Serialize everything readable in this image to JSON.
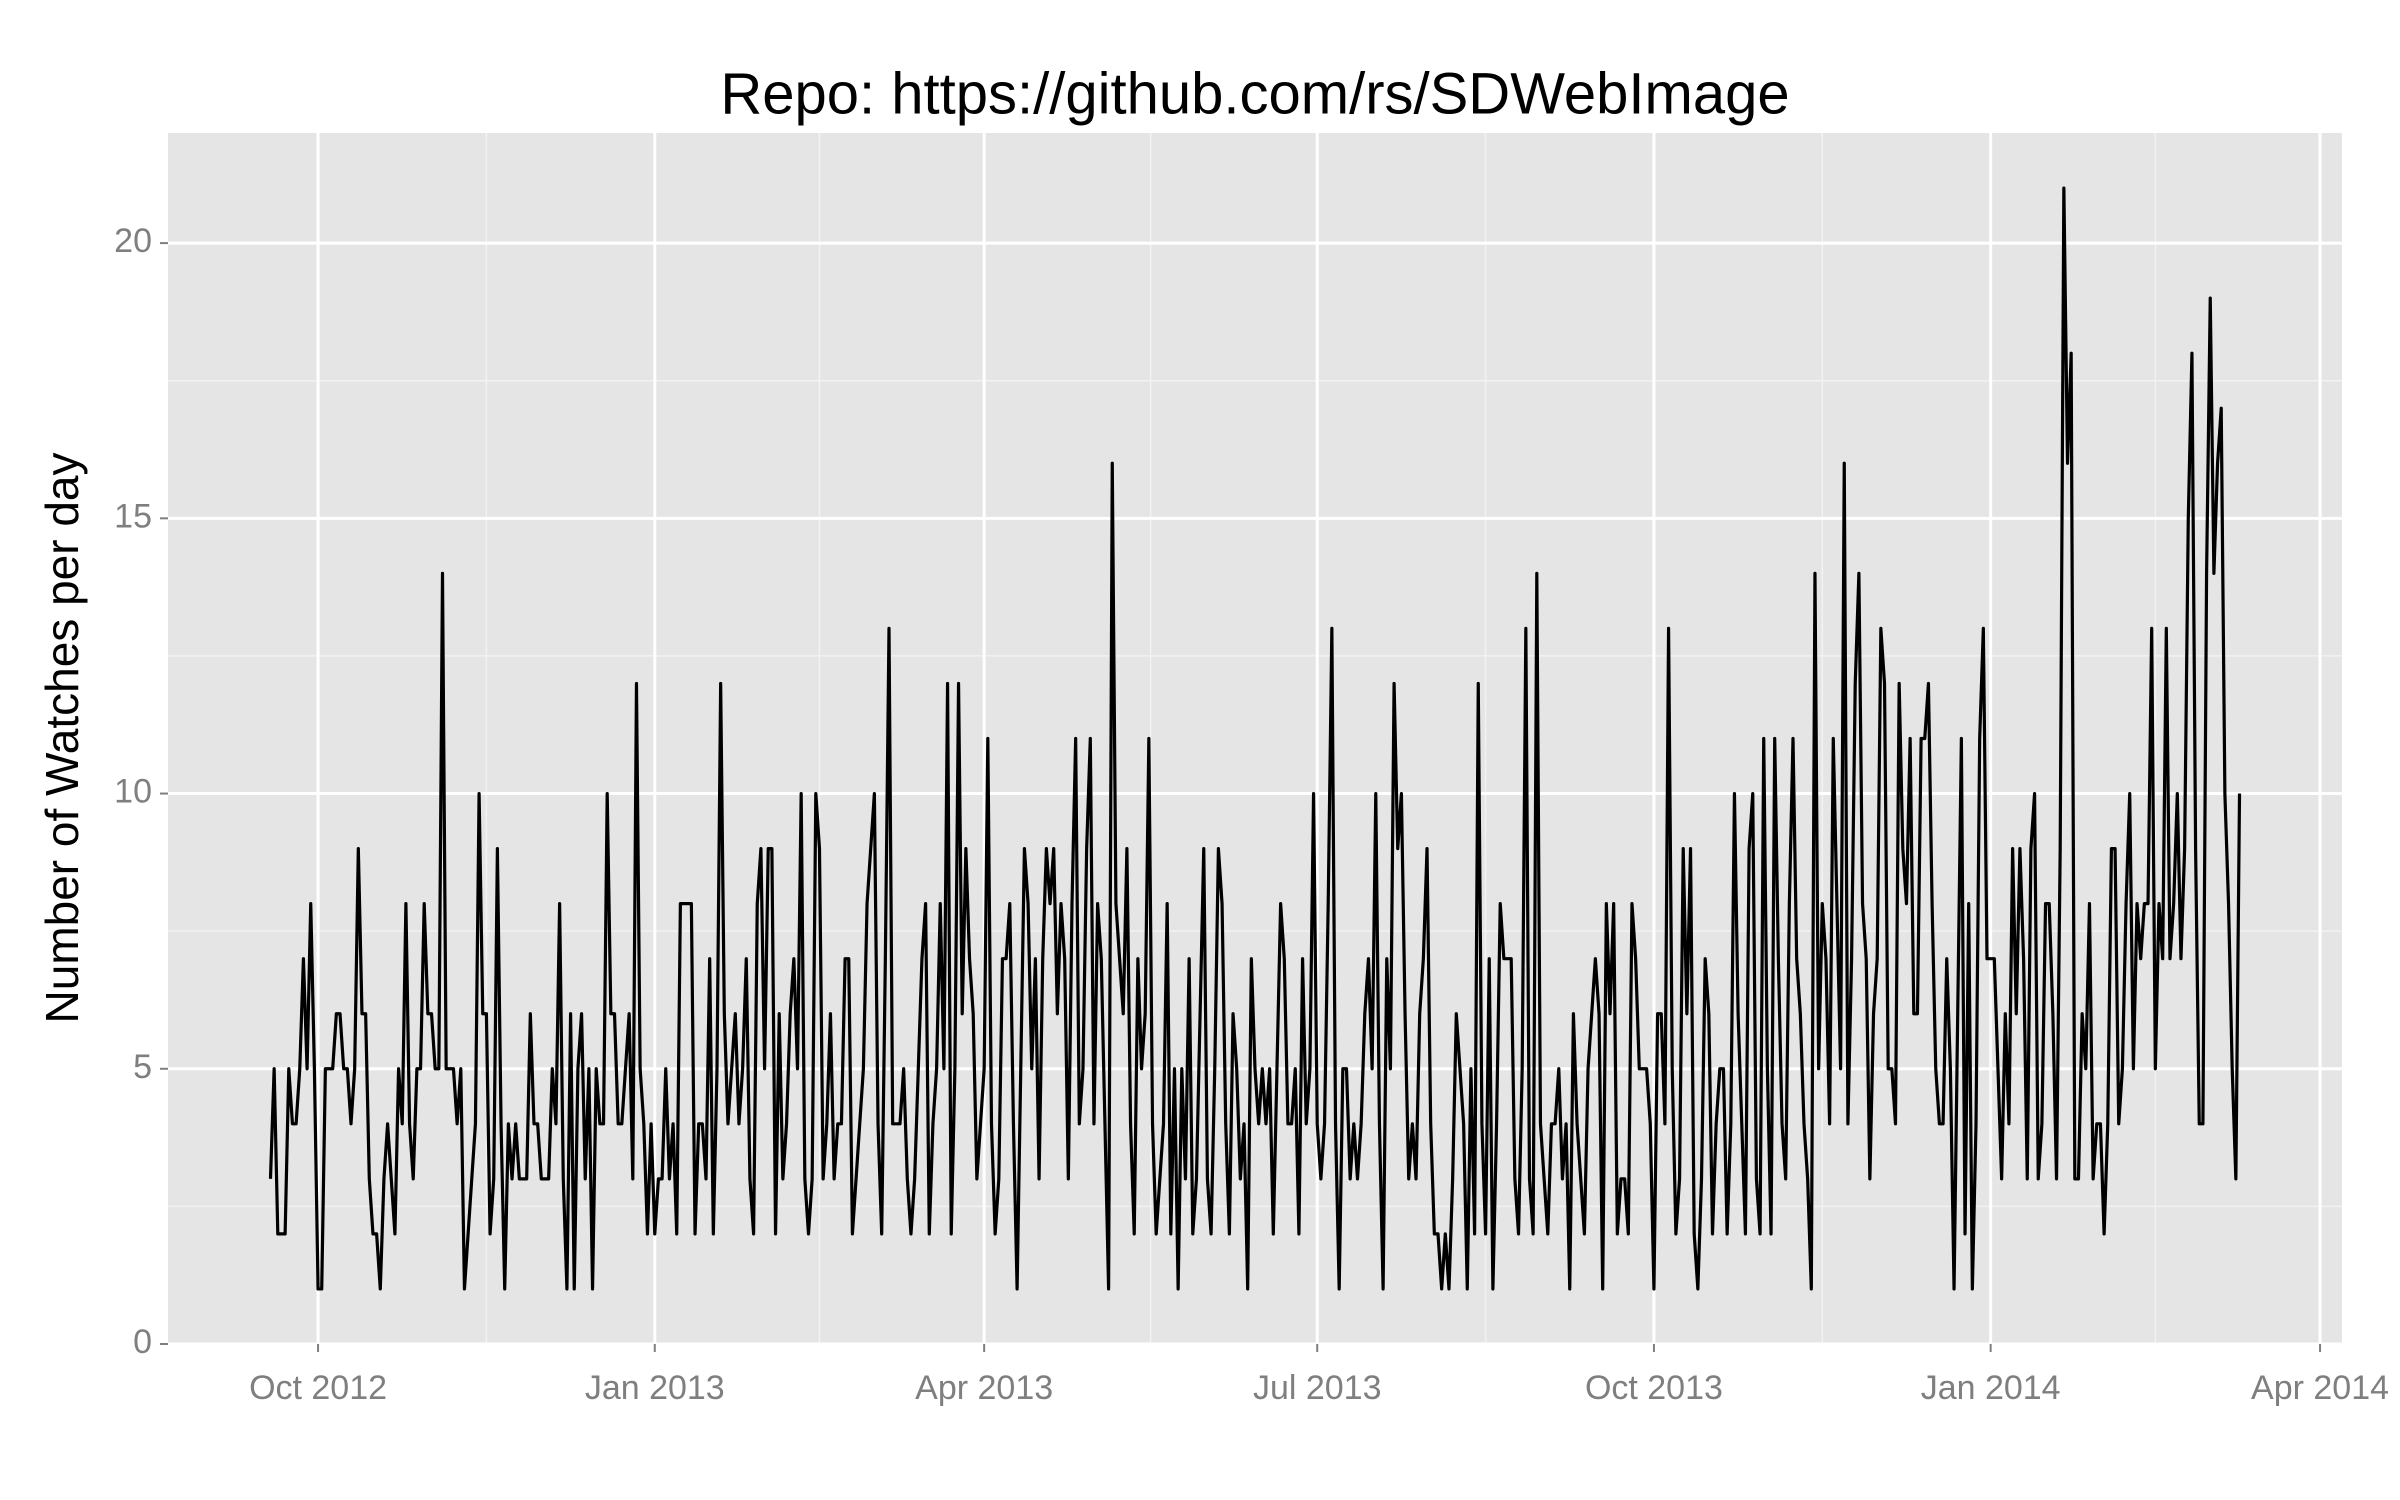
{
  "chart_data": {
    "type": "line",
    "title": "Repo: https://github.com/rs/SDWebImage",
    "ylabel": "Number of Watches per day",
    "color": "#000000",
    "grid": true,
    "xlim": [
      -41,
      553
    ],
    "ylim": [
      0,
      22
    ],
    "xticks": [
      {
        "value": 0,
        "label": "Oct 2012"
      },
      {
        "value": 92,
        "label": "Jan 2013"
      },
      {
        "value": 182,
        "label": "Apr 2013"
      },
      {
        "value": 273,
        "label": "Jul 2013"
      },
      {
        "value": 365,
        "label": "Oct 2013"
      },
      {
        "value": 457,
        "label": "Jan 2014"
      },
      {
        "value": 547,
        "label": "Apr 2014"
      }
    ],
    "yticks": [
      0,
      5,
      10,
      15,
      20
    ],
    "x": [
      -13,
      -12,
      -11,
      -10,
      -9,
      -8,
      -7,
      -6,
      -5,
      -4,
      -3,
      -2,
      -1,
      0,
      1,
      2,
      3,
      4,
      5,
      6,
      7,
      8,
      9,
      10,
      11,
      12,
      13,
      14,
      15,
      16,
      17,
      18,
      19,
      20,
      21,
      22,
      23,
      24,
      25,
      26,
      27,
      28,
      29,
      30,
      31,
      32,
      33,
      34,
      35,
      36,
      37,
      38,
      39,
      40,
      41,
      42,
      43,
      44,
      45,
      46,
      47,
      48,
      49,
      50,
      51,
      52,
      53,
      54,
      55,
      56,
      57,
      58,
      59,
      60,
      61,
      62,
      63,
      64,
      65,
      66,
      67,
      68,
      69,
      70,
      71,
      72,
      73,
      74,
      75,
      76,
      77,
      78,
      79,
      80,
      81,
      82,
      83,
      84,
      85,
      86,
      87,
      88,
      89,
      90,
      91,
      92,
      93,
      94,
      95,
      96,
      97,
      98,
      99,
      100,
      101,
      102,
      103,
      104,
      105,
      106,
      107,
      108,
      109,
      110,
      111,
      112,
      113,
      114,
      115,
      116,
      117,
      118,
      119,
      120,
      121,
      122,
      123,
      124,
      125,
      126,
      127,
      128,
      129,
      130,
      131,
      132,
      133,
      134,
      135,
      136,
      137,
      138,
      139,
      140,
      141,
      142,
      143,
      144,
      145,
      146,
      147,
      148,
      149,
      150,
      151,
      152,
      153,
      154,
      155,
      156,
      157,
      158,
      159,
      160,
      161,
      162,
      163,
      164,
      165,
      166,
      167,
      168,
      169,
      170,
      171,
      172,
      173,
      174,
      175,
      176,
      177,
      178,
      179,
      180,
      181,
      182,
      183,
      184,
      185,
      186,
      187,
      188,
      189,
      190,
      191,
      192,
      193,
      194,
      195,
      196,
      197,
      198,
      199,
      200,
      201,
      202,
      203,
      204,
      205,
      206,
      207,
      208,
      209,
      210,
      211,
      212,
      213,
      214,
      215,
      216,
      217,
      218,
      219,
      220,
      221,
      222,
      223,
      224,
      225,
      226,
      227,
      228,
      229,
      230,
      231,
      232,
      233,
      234,
      235,
      236,
      237,
      238,
      239,
      240,
      241,
      242,
      243,
      244,
      245,
      246,
      247,
      248,
      249,
      250,
      251,
      252,
      253,
      254,
      255,
      256,
      257,
      258,
      259,
      260,
      261,
      262,
      263,
      264,
      265,
      266,
      267,
      268,
      269,
      270,
      271,
      272,
      273,
      274,
      275,
      276,
      277,
      278,
      279,
      280,
      281,
      282,
      283,
      284,
      285,
      286,
      287,
      288,
      289,
      290,
      291,
      292,
      293,
      294,
      295,
      296,
      297,
      298,
      299,
      300,
      301,
      302,
      303,
      304,
      305,
      306,
      307,
      308,
      309,
      310,
      311,
      312,
      313,
      314,
      315,
      316,
      317,
      318,
      319,
      320,
      321,
      322,
      323,
      324,
      325,
      326,
      327,
      328,
      329,
      330,
      331,
      332,
      333,
      334,
      335,
      336,
      337,
      338,
      339,
      340,
      341,
      342,
      343,
      344,
      345,
      346,
      347,
      348,
      349,
      350,
      351,
      352,
      353,
      354,
      355,
      356,
      357,
      358,
      359,
      360,
      361,
      362,
      363,
      364,
      365,
      366,
      367,
      368,
      369,
      370,
      371,
      372,
      373,
      374,
      375,
      376,
      377,
      378,
      379,
      380,
      381,
      382,
      383,
      384,
      385,
      386,
      387,
      388,
      389,
      390,
      391,
      392,
      393,
      394,
      395,
      396,
      397,
      398,
      399,
      400,
      401,
      402,
      403,
      404,
      405,
      406,
      407,
      408,
      409,
      410,
      411,
      412,
      413,
      414,
      415,
      416,
      417,
      418,
      419,
      420,
      421,
      422,
      423,
      424,
      425,
      426,
      427,
      428,
      429,
      430,
      431,
      432,
      433,
      434,
      435,
      436,
      437,
      438,
      439,
      440,
      441,
      442,
      443,
      444,
      445,
      446,
      447,
      448,
      449,
      450,
      451,
      452,
      453,
      454,
      455,
      456,
      457,
      458,
      459,
      460,
      461,
      462,
      463,
      464,
      465,
      466,
      467,
      468,
      469,
      470,
      471,
      472,
      473,
      474,
      475,
      476,
      477,
      478,
      479,
      480,
      481,
      482,
      483,
      484,
      485,
      486,
      487,
      488,
      489,
      490,
      491,
      492,
      493,
      494,
      495,
      496,
      497,
      498,
      499,
      500,
      501,
      502,
      503,
      504,
      505,
      506,
      507,
      508,
      509,
      510,
      511,
      512,
      513,
      514,
      515,
      516,
      517,
      518,
      519,
      520,
      521,
      522,
      523,
      524,
      525
    ],
    "values": [
      3,
      5,
      2,
      2,
      2,
      5,
      4,
      4,
      5,
      7,
      5,
      8,
      5,
      1,
      1,
      5,
      5,
      5,
      6,
      6,
      5,
      5,
      4,
      5,
      9,
      6,
      6,
      3,
      2,
      2,
      1,
      3,
      4,
      3,
      2,
      5,
      4,
      8,
      4,
      3,
      5,
      5,
      8,
      6,
      6,
      5,
      5,
      14,
      5,
      5,
      5,
      4,
      5,
      1,
      2,
      3,
      4,
      10,
      6,
      6,
      2,
      3,
      9,
      4,
      1,
      4,
      3,
      4,
      3,
      3,
      3,
      6,
      4,
      4,
      3,
      3,
      3,
      5,
      4,
      8,
      3,
      1,
      6,
      1,
      5,
      6,
      3,
      5,
      1,
      5,
      4,
      4,
      10,
      6,
      6,
      4,
      4,
      5,
      6,
      3,
      12,
      5,
      4,
      2,
      4,
      2,
      3,
      3,
      5,
      3,
      4,
      2,
      8,
      8,
      8,
      8,
      2,
      4,
      4,
      3,
      7,
      2,
      5,
      12,
      6,
      4,
      5,
      6,
      4,
      5,
      7,
      3,
      2,
      8,
      9,
      5,
      9,
      9,
      2,
      6,
      3,
      4,
      6,
      7,
      5,
      10,
      3,
      2,
      3,
      10,
      9,
      3,
      4,
      6,
      3,
      4,
      4,
      7,
      7,
      2,
      3,
      4,
      5,
      8,
      9,
      10,
      4,
      2,
      7,
      13,
      4,
      4,
      4,
      5,
      3,
      2,
      3,
      5,
      7,
      8,
      2,
      4,
      5,
      8,
      5,
      12,
      2,
      5,
      12,
      6,
      9,
      7,
      6,
      3,
      4,
      5,
      11,
      4,
      2,
      3,
      7,
      7,
      8,
      4,
      1,
      5,
      9,
      8,
      5,
      7,
      3,
      7,
      9,
      8,
      9,
      6,
      8,
      7,
      3,
      8,
      11,
      4,
      5,
      9,
      11,
      4,
      8,
      7,
      4,
      1,
      16,
      8,
      7,
      6,
      9,
      4,
      2,
      7,
      5,
      6,
      11,
      4,
      2,
      3,
      4,
      8,
      2,
      5,
      1,
      5,
      3,
      7,
      2,
      3,
      6,
      9,
      3,
      2,
      5,
      9,
      8,
      4,
      2,
      6,
      5,
      3,
      4,
      1,
      7,
      5,
      4,
      5,
      4,
      5,
      2,
      5,
      8,
      7,
      4,
      4,
      5,
      2,
      7,
      4,
      5,
      10,
      4,
      3,
      4,
      8,
      13,
      4,
      1,
      5,
      5,
      3,
      4,
      3,
      4,
      6,
      7,
      5,
      10,
      4,
      1,
      7,
      5,
      12,
      9,
      10,
      6,
      3,
      4,
      3,
      6,
      7,
      9,
      4,
      2,
      2,
      1,
      2,
      1,
      3,
      6,
      5,
      4,
      1,
      5,
      2,
      12,
      4,
      2,
      7,
      1,
      4,
      8,
      7,
      7,
      7,
      3,
      2,
      5,
      13,
      3,
      2,
      14,
      4,
      3,
      2,
      4,
      4,
      5,
      3,
      4,
      1,
      6,
      4,
      3,
      2,
      5,
      6,
      7,
      6,
      1,
      8,
      6,
      8,
      2,
      3,
      3,
      2,
      8,
      7,
      5,
      5,
      5,
      4,
      1,
      6,
      6,
      4,
      13,
      5,
      2,
      3,
      9,
      6,
      9,
      2,
      1,
      3,
      7,
      6,
      2,
      4,
      5,
      5,
      2,
      4,
      10,
      6,
      4,
      2,
      9,
      10,
      3,
      2,
      11,
      5,
      2,
      11,
      7,
      4,
      3,
      8,
      11,
      7,
      6,
      4,
      3,
      1,
      14,
      5,
      8,
      7,
      4,
      11,
      8,
      5,
      16,
      4,
      7,
      12,
      14,
      8,
      7,
      3,
      6,
      7,
      13,
      12,
      5,
      5,
      4,
      12,
      9,
      8,
      11,
      6,
      6,
      11,
      11,
      12,
      8,
      5,
      4,
      4,
      7,
      5,
      1,
      6,
      11,
      2,
      8,
      1,
      4,
      11,
      13,
      7,
      7,
      7,
      5,
      3,
      6,
      4,
      9,
      6,
      9,
      7,
      3,
      9,
      10,
      3,
      4,
      8,
      8,
      6,
      3,
      9,
      21,
      16,
      18,
      3,
      3,
      6,
      5,
      8,
      3,
      4,
      4,
      2,
      4,
      9,
      9,
      4,
      5,
      8,
      10,
      5,
      8,
      7,
      8,
      8,
      13,
      5,
      8,
      7,
      13,
      7,
      8,
      10,
      7,
      9,
      15,
      18,
      9,
      4,
      4,
      14,
      19,
      14,
      16,
      17,
      10,
      8,
      5,
      3,
      10
    ]
  }
}
